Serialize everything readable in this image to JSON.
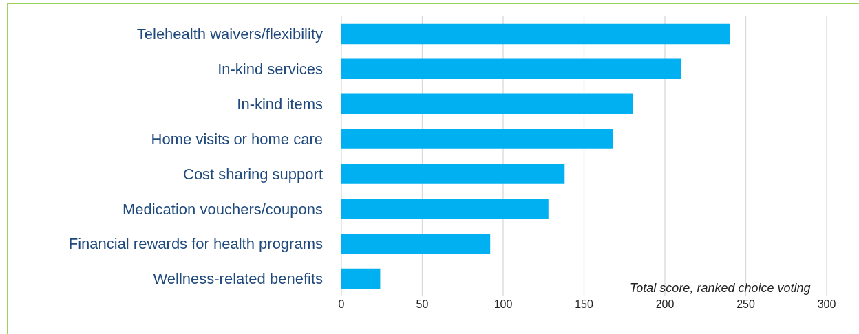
{
  "chart_data": {
    "type": "bar",
    "orientation": "horizontal",
    "categories": [
      "Telehealth waivers/flexibility",
      "In-kind services",
      "In-kind items",
      "Home visits or home care",
      "Cost sharing support",
      "Medication vouchers/coupons",
      "Financial rewards for health programs",
      "Wellness-related benefits"
    ],
    "values": [
      240,
      210,
      180,
      168,
      138,
      128,
      92,
      24
    ],
    "color": "#00b0f0",
    "xlim": [
      0,
      300
    ],
    "xticks": [
      0,
      50,
      100,
      150,
      200,
      250,
      300
    ],
    "grid": "x",
    "annotations": [
      "Total score, ranked choice voting"
    ]
  }
}
